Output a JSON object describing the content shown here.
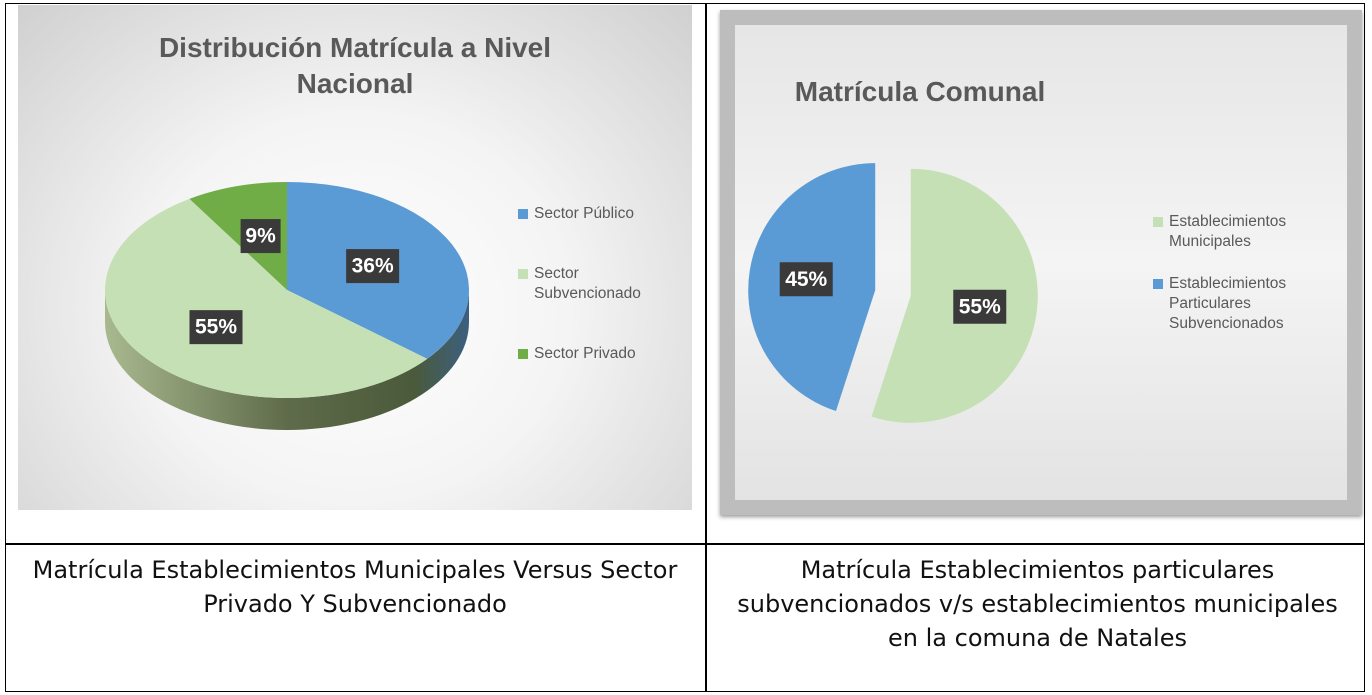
{
  "chart_data": [
    {
      "type": "pie",
      "title": "Distribución Matrícula a Nivel Nacional",
      "categories": [
        "Sector Público",
        "Sector Subvencionado",
        "Sector Privado"
      ],
      "values": [
        36,
        55,
        9
      ],
      "value_labels": [
        "36%",
        "55%",
        "9%"
      ],
      "colors": [
        "#5b9bd5",
        "#c5e0b4",
        "#70ad47"
      ],
      "legend": "right",
      "style": "3d"
    },
    {
      "type": "pie",
      "title": "Matrícula Comunal",
      "categories": [
        "Establecimientos Municipales",
        "Establecimientos Particulares Subvencionados"
      ],
      "values": [
        55,
        45
      ],
      "value_labels": [
        "55%",
        "45%"
      ],
      "colors": [
        "#c5e0b4",
        "#5b9bd5"
      ],
      "legend": "right",
      "style": "exploded"
    }
  ],
  "captions": [
    "Matrícula Establecimientos Municipales Versus Sector Privado Y Subvencionado",
    "Matrícula Establecimientos particulares subvencionados v/s establecimientos municipales en la comuna de Natales"
  ]
}
